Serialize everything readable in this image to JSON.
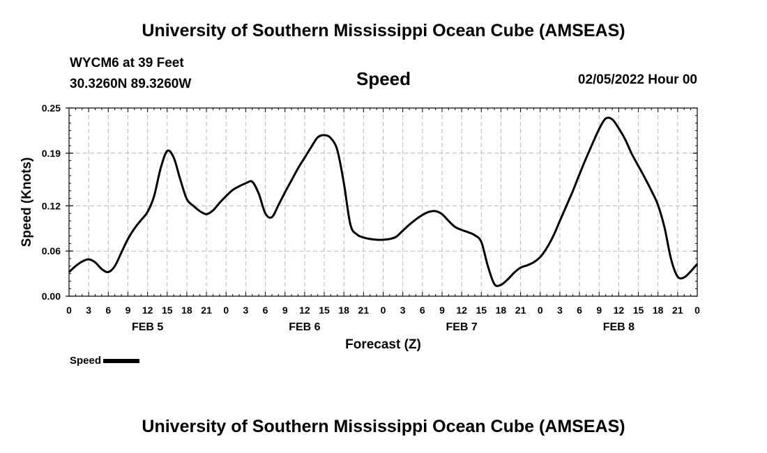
{
  "header": {
    "title": "University of Southern Mississippi Ocean Cube (AMSEAS)",
    "station_line": "WYCM6 at 39 Feet",
    "coords_line": "30.3260N  89.3260W",
    "variable": "Speed",
    "datetime": "02/05/2022 Hour 00"
  },
  "footer": {
    "title": "University of Southern Mississippi Ocean Cube (AMSEAS)"
  },
  "legend": {
    "label": "Speed"
  },
  "chart_data": {
    "type": "line",
    "title": "Speed",
    "xlabel": "Forecast (Z)",
    "ylabel": "Speed (Knots)",
    "xlim": [
      0,
      96
    ],
    "ylim": [
      0,
      0.25
    ],
    "yticks": [
      0,
      0.06,
      0.12,
      0.19,
      0.25
    ],
    "ytick_labels": [
      "0.00",
      "0.06",
      "0.12",
      "0.19",
      "0.25"
    ],
    "xticks": [
      0,
      3,
      6,
      9,
      12,
      15,
      18,
      21,
      24,
      27,
      30,
      33,
      36,
      39,
      42,
      45,
      48,
      51,
      54,
      57,
      60,
      63,
      66,
      69,
      72,
      75,
      78,
      81,
      84,
      87,
      90,
      93,
      96
    ],
    "xtick_labels": [
      "0",
      "3",
      "6",
      "9",
      "12",
      "15",
      "18",
      "21",
      "0",
      "3",
      "6",
      "9",
      "12",
      "15",
      "18",
      "21",
      "0",
      "3",
      "6",
      "9",
      "12",
      "15",
      "18",
      "21",
      "0",
      "3",
      "6",
      "9",
      "12",
      "15",
      "18",
      "21",
      "0"
    ],
    "day_labels": [
      {
        "label": "FEB 5",
        "x": 12
      },
      {
        "label": "FEB 6",
        "x": 36
      },
      {
        "label": "FEB 7",
        "x": 60
      },
      {
        "label": "FEB 8",
        "x": 84
      }
    ],
    "grid": true,
    "legend_position": "bottom-left",
    "series": [
      {
        "name": "Speed",
        "color": "#000000",
        "x": [
          0,
          1,
          2,
          3,
          4,
          5,
          6,
          7,
          8,
          9,
          10,
          11,
          12,
          13,
          14,
          15,
          16,
          17,
          18,
          19,
          20,
          21,
          22,
          23,
          24,
          25,
          26,
          27,
          28,
          29,
          30,
          31,
          32,
          33,
          34,
          35,
          36,
          37,
          38,
          39,
          40,
          41,
          42,
          43,
          44,
          45,
          46,
          47,
          48,
          49,
          50,
          51,
          52,
          53,
          54,
          55,
          56,
          57,
          58,
          59,
          60,
          61,
          62,
          63,
          64,
          65,
          66,
          67,
          68,
          69,
          70,
          71,
          72,
          73,
          74,
          75,
          76,
          77,
          78,
          79,
          80,
          81,
          82,
          83,
          84,
          85,
          86,
          87,
          88,
          89,
          90,
          91,
          92,
          93,
          94,
          95,
          96
        ],
        "values": [
          0.032,
          0.04,
          0.046,
          0.049,
          0.045,
          0.036,
          0.032,
          0.04,
          0.058,
          0.076,
          0.09,
          0.101,
          0.112,
          0.133,
          0.17,
          0.193,
          0.184,
          0.155,
          0.129,
          0.12,
          0.113,
          0.109,
          0.114,
          0.124,
          0.133,
          0.141,
          0.146,
          0.15,
          0.152,
          0.136,
          0.11,
          0.105,
          0.121,
          0.138,
          0.154,
          0.17,
          0.184,
          0.198,
          0.211,
          0.214,
          0.21,
          0.194,
          0.15,
          0.095,
          0.082,
          0.078,
          0.076,
          0.075,
          0.075,
          0.076,
          0.079,
          0.087,
          0.095,
          0.102,
          0.108,
          0.112,
          0.113,
          0.109,
          0.1,
          0.092,
          0.088,
          0.085,
          0.081,
          0.072,
          0.04,
          0.016,
          0.015,
          0.022,
          0.031,
          0.038,
          0.041,
          0.045,
          0.052,
          0.064,
          0.08,
          0.1,
          0.12,
          0.14,
          0.162,
          0.183,
          0.203,
          0.222,
          0.236,
          0.235,
          0.223,
          0.208,
          0.189,
          0.173,
          0.157,
          0.14,
          0.121,
          0.091,
          0.049,
          0.026,
          0.025,
          0.033,
          0.043
        ]
      }
    ]
  }
}
